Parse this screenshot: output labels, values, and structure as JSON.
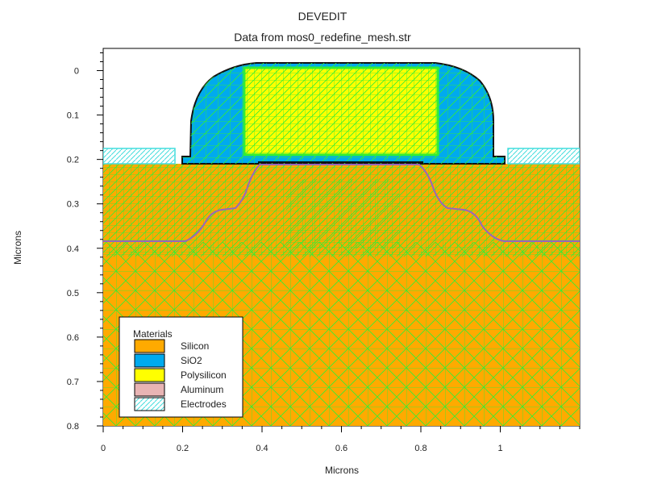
{
  "window": {
    "title": "DEVEDIT",
    "subtitle": "Data from mos0_redefine_mesh.str"
  },
  "axes": {
    "xlabel": "Microns",
    "ylabel": "Microns",
    "xticks": [
      0,
      0.2,
      0.4,
      0.6,
      0.8,
      1
    ],
    "xtick_labels": [
      "0",
      "0.2",
      "0.4",
      "0.6",
      "0.8",
      "1"
    ],
    "yticks": [
      0,
      0.1,
      0.2,
      0.3,
      0.4,
      0.5,
      0.6,
      0.7,
      0.8
    ],
    "ytick_labels": [
      "0",
      "0.1",
      "0.2",
      "0.3",
      "0.4",
      "0.5",
      "0.6",
      "0.7",
      "0.8"
    ],
    "xrange": [
      0,
      1.2
    ],
    "yrange": [
      -0.05,
      0.8
    ]
  },
  "legend": {
    "title": "Materials",
    "items": [
      {
        "label": "Silicon",
        "color": "#ffaa00"
      },
      {
        "label": "SiO2",
        "color": "#00aaee"
      },
      {
        "label": "Polysilicon",
        "color": "#ffff00"
      },
      {
        "label": "Aluminum",
        "color": "#e8b4b4"
      },
      {
        "label": "Electrodes",
        "color": "#ffffff"
      }
    ]
  },
  "colors": {
    "silicon": "#ffaa00",
    "oxide": "#00aaee",
    "poly": "#ffff00",
    "mesh": "#33ee33",
    "electrode": "#44dddd",
    "junction": "#9966bb"
  }
}
